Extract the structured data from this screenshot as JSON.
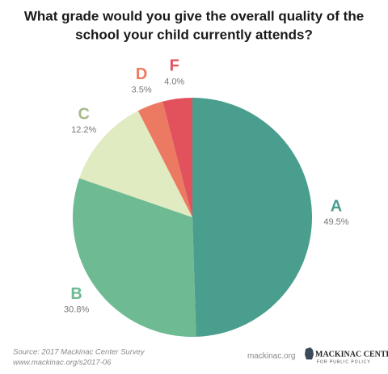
{
  "chart_data": {
    "type": "pie",
    "title": [
      "What grade would you give the overall quality of the",
      "school your child currently attends?"
    ],
    "categories": [
      "A",
      "B",
      "C",
      "D",
      "F"
    ],
    "values": [
      49.5,
      30.8,
      12.2,
      3.5,
      4.0
    ],
    "value_labels": [
      "49.5%",
      "30.8%",
      "12.2%",
      "3.5%",
      "4.0%"
    ],
    "colors": [
      "#4a9e8e",
      "#6dba93",
      "#e1ebc2",
      "#ec7a62",
      "#e2525c"
    ],
    "label_colors": [
      "#4a9e8e",
      "#6dba93",
      "#a9b98c",
      "#ec7a62",
      "#e2525c"
    ],
    "source": [
      "Source: 2017 Mackinac Center Survey",
      "www.mackinac.org/s2017-06"
    ],
    "website": "mackinac.org",
    "logo": {
      "name": "MACKINAC CENTER",
      "tagline": "FOR PUBLIC POLICY"
    }
  }
}
